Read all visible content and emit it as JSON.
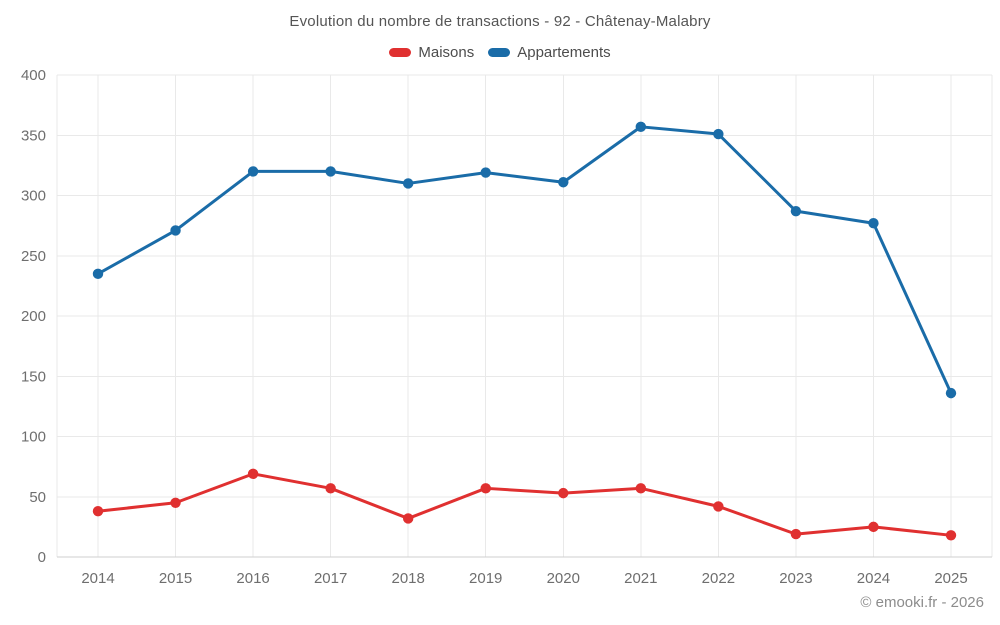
{
  "chart": {
    "title": "Evolution du nombre de transactions - 92 - Châtenay-Malabry"
  },
  "footer": {
    "copyright": "© emooki.fr - 2026"
  },
  "colors": {
    "maisons": "#e03030",
    "appartements": "#1a6ca8",
    "grid": "#e9e9e9",
    "axis": "#cfcfcf",
    "tick_text": "#6e6e6e"
  },
  "chart_data": {
    "type": "line",
    "title": "Evolution du nombre de transactions - 92 - Châtenay-Malabry",
    "categories": [
      "2014",
      "2015",
      "2016",
      "2017",
      "2018",
      "2019",
      "2020",
      "2021",
      "2022",
      "2023",
      "2024",
      "2025"
    ],
    "series": [
      {
        "name": "Maisons",
        "color": "#e03030",
        "values": [
          38,
          45,
          69,
          57,
          32,
          57,
          53,
          57,
          42,
          19,
          25,
          18
        ]
      },
      {
        "name": "Appartements",
        "color": "#1a6ca8",
        "values": [
          235,
          271,
          320,
          320,
          310,
          319,
          311,
          357,
          351,
          287,
          277,
          136
        ]
      }
    ],
    "xlabel": "",
    "ylabel": "",
    "ylim": [
      0,
      400
    ],
    "y_ticks": [
      0,
      50,
      100,
      150,
      200,
      250,
      300,
      350,
      400
    ],
    "grid": true,
    "legend_position": "top"
  }
}
